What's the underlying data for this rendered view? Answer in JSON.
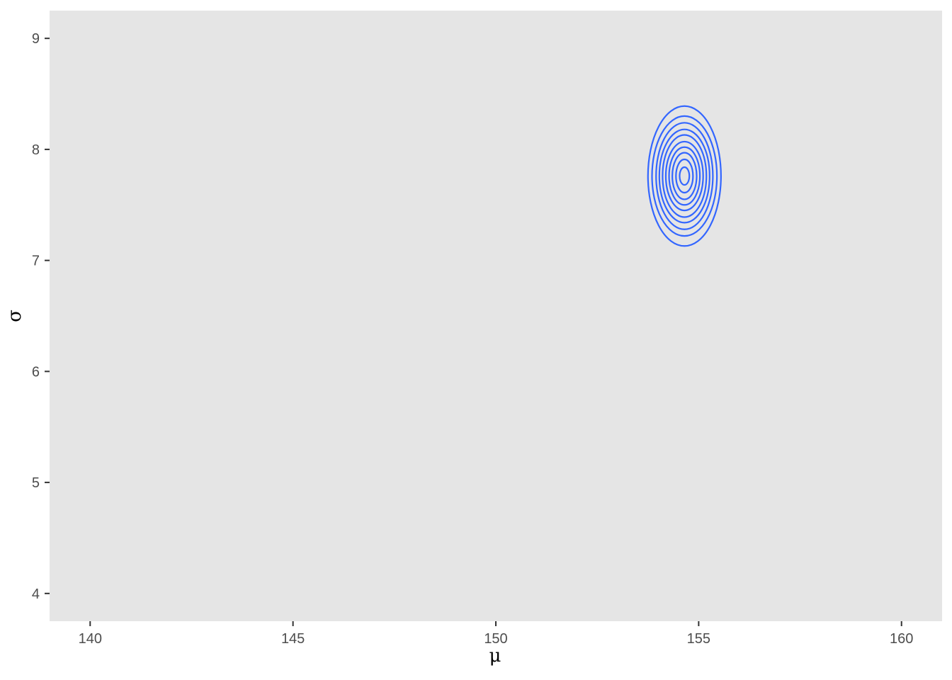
{
  "chart_data": {
    "type": "contour",
    "title": "",
    "xlabel": "μ",
    "ylabel": "σ",
    "xlim": [
      139.0,
      161.0
    ],
    "ylim": [
      3.75,
      9.25
    ],
    "x_ticks": [
      {
        "value": 140,
        "label": "140"
      },
      {
        "value": 145,
        "label": "145"
      },
      {
        "value": 150,
        "label": "150"
      },
      {
        "value": 155,
        "label": "155"
      },
      {
        "value": 160,
        "label": "160"
      }
    ],
    "y_ticks": [
      {
        "value": 4,
        "label": "4"
      },
      {
        "value": 5,
        "label": "5"
      },
      {
        "value": 6,
        "label": "6"
      },
      {
        "value": 7,
        "label": "7"
      },
      {
        "value": 8,
        "label": "8"
      },
      {
        "value": 9,
        "label": "9"
      }
    ],
    "grid": false,
    "panel_background": "#e5e5e5",
    "line_color": "#3366ff",
    "contour_center": {
      "mu": 154.65,
      "sigma": 7.76
    },
    "contours": [
      {
        "mu_halfwidth": 0.9,
        "sigma_halfheight": 0.63
      },
      {
        "mu_halfwidth": 0.8,
        "sigma_halfheight": 0.54
      },
      {
        "mu_halfwidth": 0.7,
        "sigma_halfheight": 0.48
      },
      {
        "mu_halfwidth": 0.62,
        "sigma_halfheight": 0.42
      },
      {
        "mu_halfwidth": 0.54,
        "sigma_halfheight": 0.37
      },
      {
        "mu_halfwidth": 0.46,
        "sigma_halfheight": 0.31
      },
      {
        "mu_halfwidth": 0.38,
        "sigma_halfheight": 0.26
      },
      {
        "mu_halfwidth": 0.3,
        "sigma_halfheight": 0.21
      },
      {
        "mu_halfwidth": 0.21,
        "sigma_halfheight": 0.15
      },
      {
        "mu_halfwidth": 0.12,
        "sigma_halfheight": 0.08
      }
    ]
  }
}
